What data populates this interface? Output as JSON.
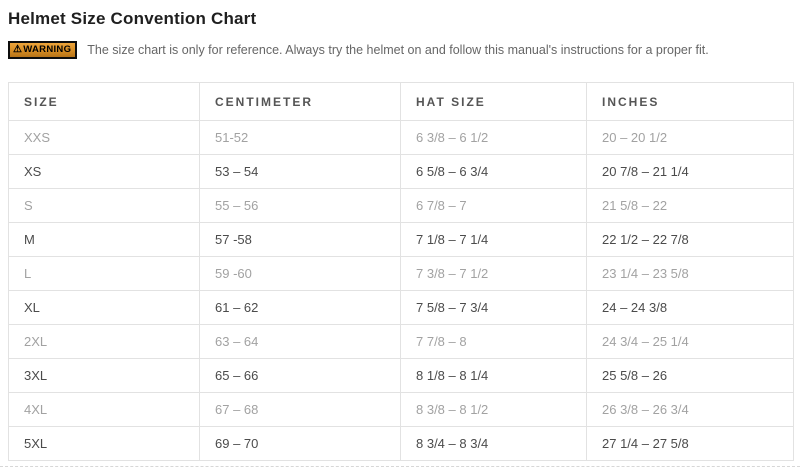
{
  "page": {
    "title": "Helmet Size Convention Chart"
  },
  "warning": {
    "badge_icon": "⚠",
    "badge_label": "WARNING",
    "text": "The size chart is only for reference. Always try the helmet on and follow this manual's instructions for a proper fit."
  },
  "table": {
    "columns": [
      "SIZE",
      "CENTIMETER",
      "HAT SIZE",
      "INCHES"
    ],
    "rows": [
      {
        "size": "XXS",
        "centimeter": "51-52",
        "hat_size": "6 3/8 – 6 1/2",
        "inches": "20 – 20 1/2",
        "emphasis": "muted"
      },
      {
        "size": "XS",
        "centimeter": "53 – 54",
        "hat_size": "6 5/8 – 6 3/4",
        "inches": "20 7/8 – 21 1/4",
        "emphasis": "strong"
      },
      {
        "size": "S",
        "centimeter": "55 – 56",
        "hat_size": "6 7/8 – 7",
        "inches": "21 5/8 – 22",
        "emphasis": "muted"
      },
      {
        "size": "M",
        "centimeter": "57 -58",
        "hat_size": "7 1/8 – 7 1/4",
        "inches": "22 1/2 – 22 7/8",
        "emphasis": "strong"
      },
      {
        "size": "L",
        "centimeter": "59 -60",
        "hat_size": "7 3/8 – 7 1/2",
        "inches": "23 1/4 – 23 5/8",
        "emphasis": "muted"
      },
      {
        "size": "XL",
        "centimeter": "61 – 62",
        "hat_size": "7 5/8 – 7 3/4",
        "inches": "24 – 24 3/8",
        "emphasis": "strong"
      },
      {
        "size": "2XL",
        "centimeter": "63 – 64",
        "hat_size": "7 7/8 – 8",
        "inches": "24 3/4 – 25 1/4",
        "emphasis": "muted"
      },
      {
        "size": "3XL",
        "centimeter": "65 – 66",
        "hat_size": "8 1/8 – 8 1/4",
        "inches": "25 5/8 – 26",
        "emphasis": "strong"
      },
      {
        "size": "4XL",
        "centimeter": "67 – 68",
        "hat_size": "8 3/8 – 8 1/2",
        "inches": "26 3/8 – 26 3/4",
        "emphasis": "muted"
      },
      {
        "size": "5XL",
        "centimeter": "69 – 70",
        "hat_size": "8 3/4 – 8 3/4",
        "inches": "27 1/4 – 27 5/8",
        "emphasis": "strong"
      }
    ]
  },
  "colors": {
    "warning_badge_bg": "#d58c24",
    "warning_badge_border": "#0d0d0d",
    "table_border": "#e2e2e2",
    "header_text": "#555555",
    "muted_row_text": "#a2a2a2",
    "strong_row_text": "#4b4b4b",
    "title_text": "#1f1f1f",
    "warning_text": "#666666"
  }
}
